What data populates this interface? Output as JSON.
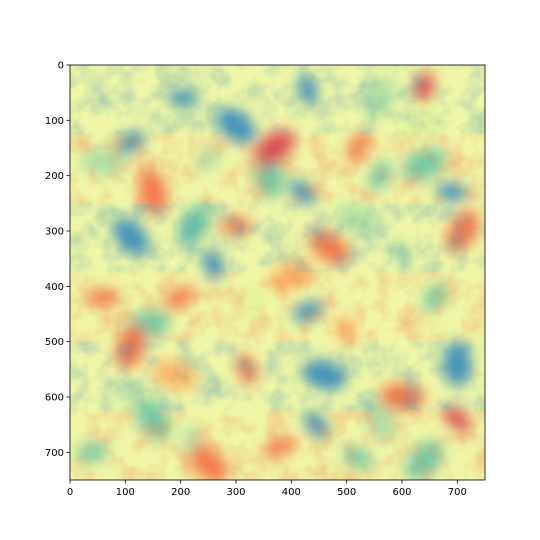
{
  "chart_data": {
    "type": "heatmap",
    "title": "",
    "xlabel": "",
    "ylabel": "",
    "xlim": [
      0,
      750
    ],
    "ylim": [
      750,
      0
    ],
    "x_ticks": [
      0,
      100,
      200,
      300,
      400,
      500,
      600,
      700
    ],
    "y_ticks": [
      0,
      100,
      200,
      300,
      400,
      500,
      600,
      700
    ],
    "x_tick_labels": [
      "0",
      "100",
      "200",
      "300",
      "400",
      "500",
      "600",
      "700"
    ],
    "y_tick_labels": [
      "0",
      "100",
      "200",
      "300",
      "400",
      "500",
      "600",
      "700"
    ],
    "grid": false,
    "legend": "none",
    "colormap": "Spectral",
    "colormap_colors": [
      "#9e0142",
      "#d53e4f",
      "#f46d43",
      "#fdae61",
      "#fee08b",
      "#ffffbf",
      "#e6f598",
      "#abdda4",
      "#66c2a5",
      "#3288bd",
      "#5e4fa2"
    ],
    "background_value_color": "#eef5a4",
    "blobs": [
      {
        "x": 205,
        "y": 60,
        "v": 0.92
      },
      {
        "x": 300,
        "y": 110,
        "v": 0.88
      },
      {
        "x": 430,
        "y": 45,
        "v": 0.85
      },
      {
        "x": 560,
        "y": 60,
        "v": 0.7
      },
      {
        "x": 110,
        "y": 140,
        "v": 0.85
      },
      {
        "x": 60,
        "y": 175,
        "v": 0.7
      },
      {
        "x": 420,
        "y": 230,
        "v": 0.9
      },
      {
        "x": 360,
        "y": 200,
        "v": 0.82
      },
      {
        "x": 560,
        "y": 200,
        "v": 0.8
      },
      {
        "x": 640,
        "y": 180,
        "v": 0.75
      },
      {
        "x": 690,
        "y": 230,
        "v": 0.85
      },
      {
        "x": 110,
        "y": 310,
        "v": 0.85
      },
      {
        "x": 260,
        "y": 360,
        "v": 0.9
      },
      {
        "x": 225,
        "y": 290,
        "v": 0.8
      },
      {
        "x": 430,
        "y": 445,
        "v": 0.9
      },
      {
        "x": 460,
        "y": 560,
        "v": 0.88
      },
      {
        "x": 445,
        "y": 650,
        "v": 0.85
      },
      {
        "x": 700,
        "y": 540,
        "v": 0.85
      },
      {
        "x": 660,
        "y": 420,
        "v": 0.75
      },
      {
        "x": 140,
        "y": 470,
        "v": 0.75
      },
      {
        "x": 100,
        "y": 590,
        "v": 0.7
      },
      {
        "x": 150,
        "y": 640,
        "v": 0.75
      },
      {
        "x": 220,
        "y": 680,
        "v": 0.7
      },
      {
        "x": 640,
        "y": 715,
        "v": 0.8
      },
      {
        "x": 40,
        "y": 700,
        "v": 0.75
      },
      {
        "x": 520,
        "y": 280,
        "v": 0.72
      },
      {
        "x": 600,
        "y": 340,
        "v": 0.7
      },
      {
        "x": 330,
        "y": 430,
        "v": 0.55
      },
      {
        "x": 250,
        "y": 170,
        "v": 0.7
      },
      {
        "x": 630,
        "y": 110,
        "v": 0.6
      },
      {
        "x": 520,
        "y": 710,
        "v": 0.8
      },
      {
        "x": 560,
        "y": 640,
        "v": 0.7
      },
      {
        "x": 640,
        "y": 40,
        "v": 0.05
      },
      {
        "x": 370,
        "y": 150,
        "v": 0.12
      },
      {
        "x": 300,
        "y": 290,
        "v": 0.18
      },
      {
        "x": 470,
        "y": 330,
        "v": 0.15
      },
      {
        "x": 320,
        "y": 550,
        "v": 0.2
      },
      {
        "x": 110,
        "y": 510,
        "v": 0.15
      },
      {
        "x": 200,
        "y": 420,
        "v": 0.18
      },
      {
        "x": 600,
        "y": 600,
        "v": 0.2
      },
      {
        "x": 700,
        "y": 640,
        "v": 0.12
      },
      {
        "x": 150,
        "y": 230,
        "v": 0.2
      },
      {
        "x": 520,
        "y": 150,
        "v": 0.18
      },
      {
        "x": 400,
        "y": 380,
        "v": 0.25
      },
      {
        "x": 60,
        "y": 420,
        "v": 0.22
      },
      {
        "x": 250,
        "y": 720,
        "v": 0.2
      },
      {
        "x": 500,
        "y": 480,
        "v": 0.25
      },
      {
        "x": 710,
        "y": 300,
        "v": 0.15
      },
      {
        "x": 380,
        "y": 690,
        "v": 0.2
      },
      {
        "x": 190,
        "y": 560,
        "v": 0.25
      }
    ]
  }
}
